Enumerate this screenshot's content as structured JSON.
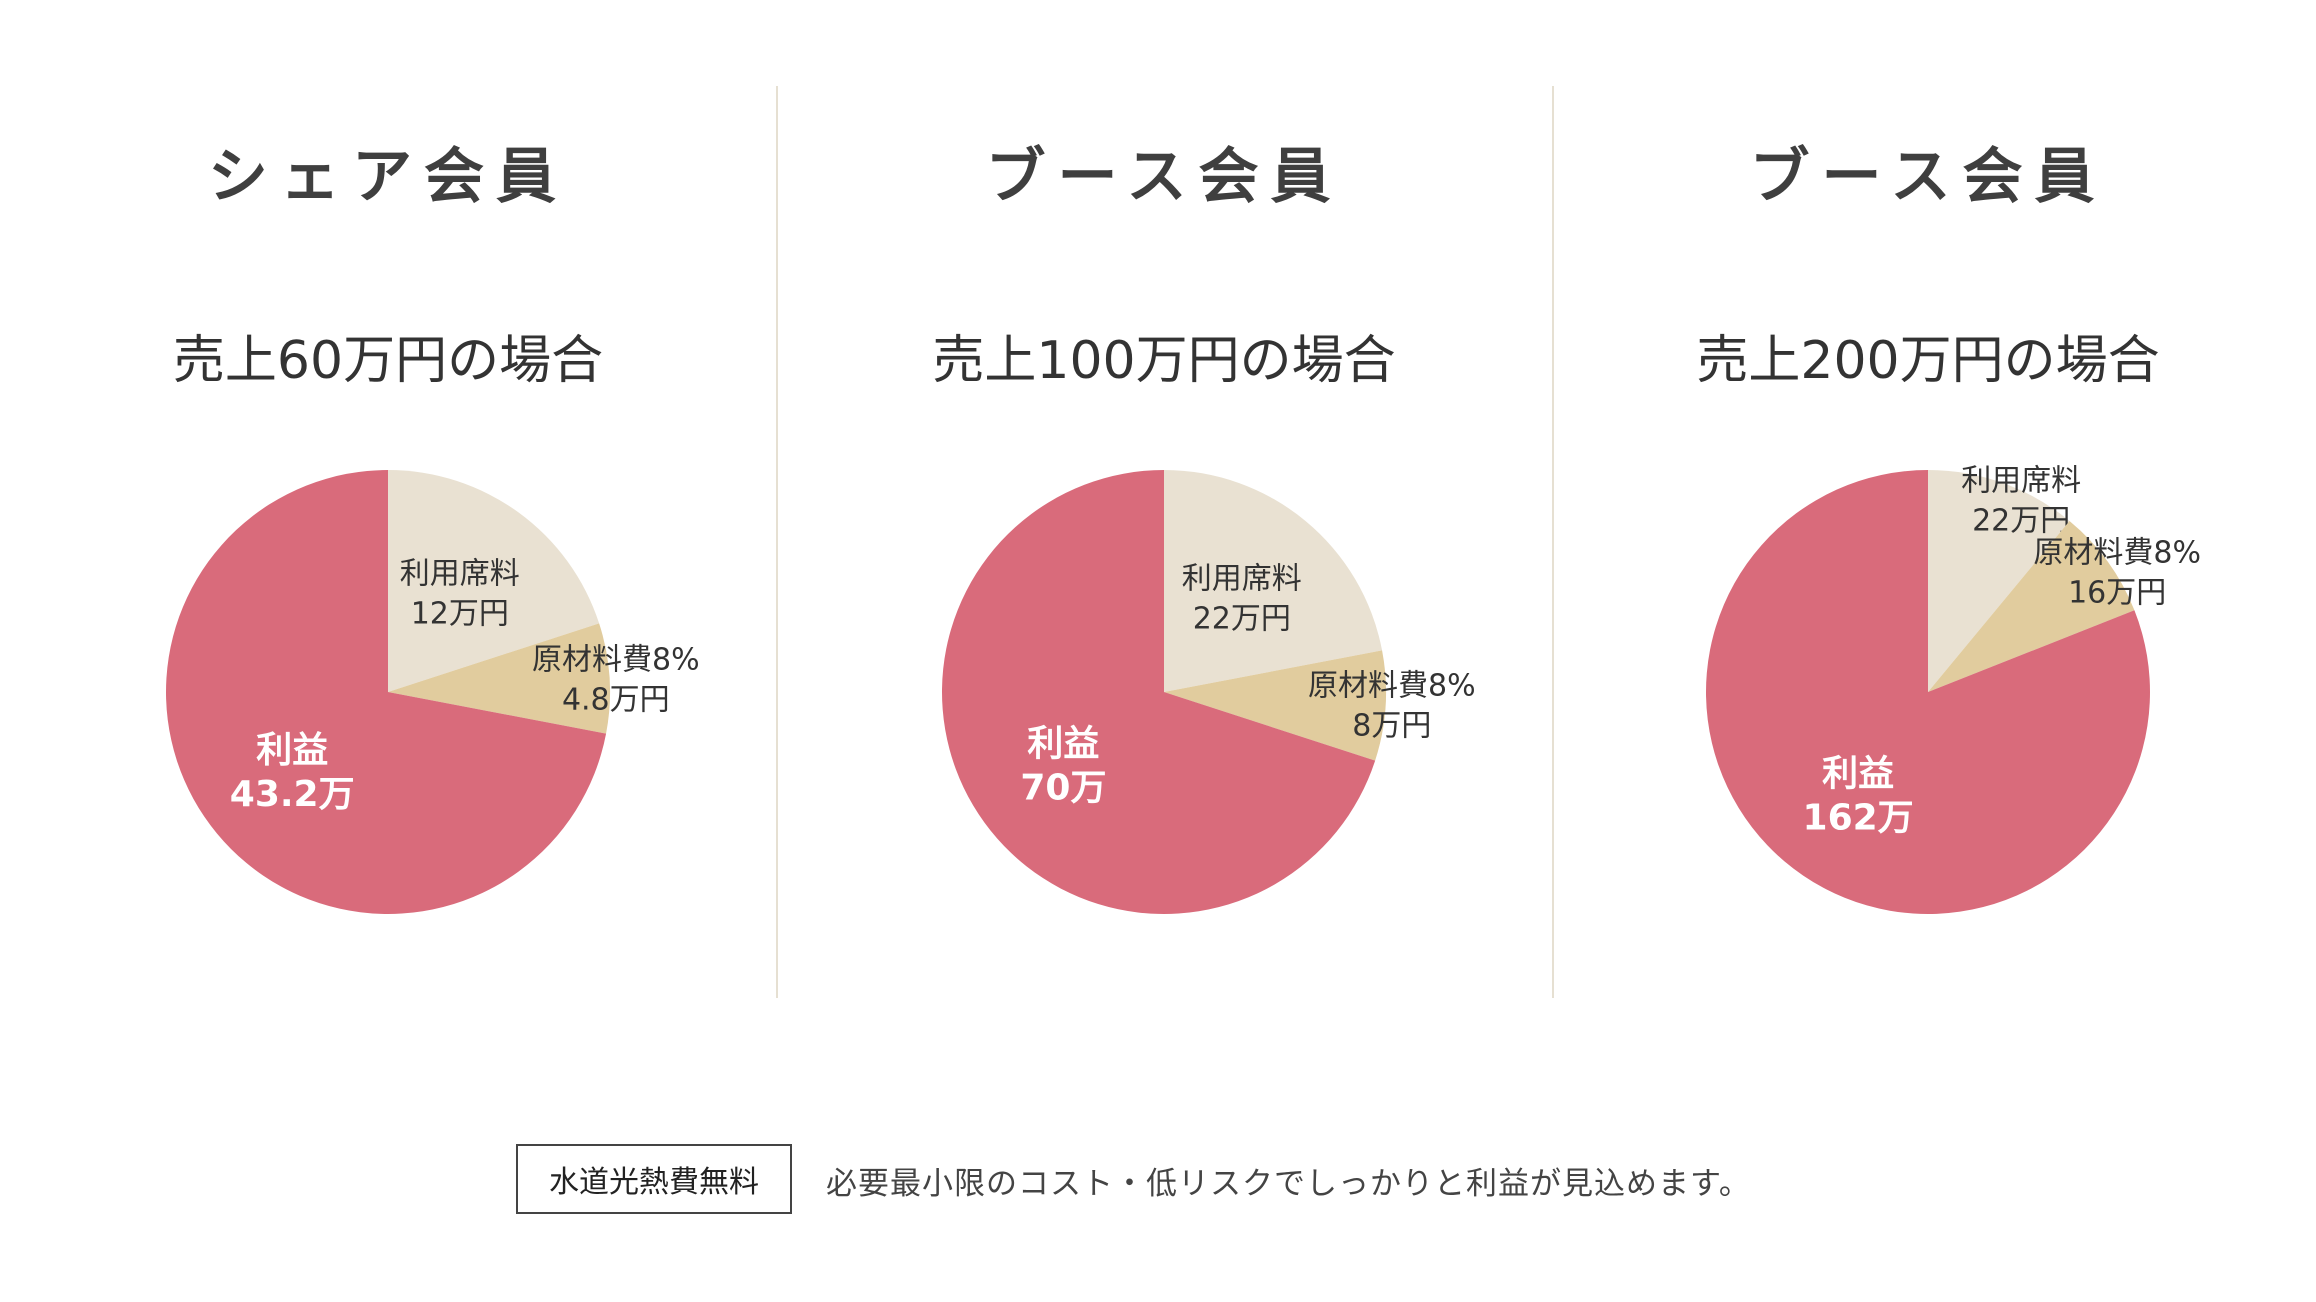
{
  "colors": {
    "profit": "#d96b7b",
    "usage_fee": "#e9e1d2",
    "material": "#e1cc9e",
    "divider": "#e6e0d2"
  },
  "chart_data": [
    {
      "type": "pie",
      "title": "シェア会員",
      "subtitle": "売上60万円の場合",
      "slices": [
        {
          "name": "利用席料",
          "label_value": "12万円",
          "value": 12,
          "color": "#e9e1d2"
        },
        {
          "name": "原材料費8%",
          "label_value": "4.8万円",
          "value": 4.8,
          "color": "#e1cc9e"
        },
        {
          "name": "利益",
          "label_value": "43.2万",
          "value": 43.2,
          "color": "#d96b7b"
        }
      ]
    },
    {
      "type": "pie",
      "title": "ブース会員",
      "subtitle": "売上100万円の場合",
      "slices": [
        {
          "name": "利用席料",
          "label_value": "22万円",
          "value": 22,
          "color": "#e9e1d2"
        },
        {
          "name": "原材料費8%",
          "label_value": "8万円",
          "value": 8,
          "color": "#e1cc9e"
        },
        {
          "name": "利益",
          "label_value": "70万",
          "value": 70,
          "color": "#d96b7b"
        }
      ]
    },
    {
      "type": "pie",
      "title": "ブース会員",
      "subtitle": "売上200万円の場合",
      "slices": [
        {
          "name": "利用席料",
          "label_value": "22万円",
          "value": 22,
          "color": "#e9e1d2"
        },
        {
          "name": "原材料費8%",
          "label_value": "16万円",
          "value": 16,
          "color": "#e1cc9e"
        },
        {
          "name": "利益",
          "label_value": "162万",
          "value": 162,
          "color": "#d96b7b"
        }
      ]
    }
  ],
  "footer": {
    "badge": "水道光熱費無料",
    "text": "必要最小限のコスト・低リスクでしっかりと利益が見込めます。"
  }
}
